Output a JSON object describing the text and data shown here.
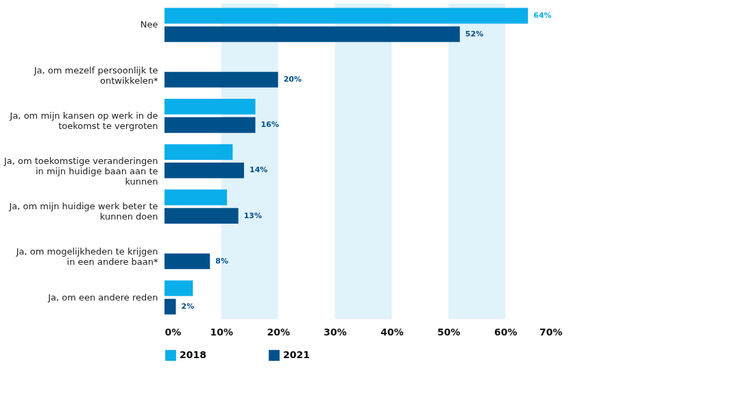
{
  "chart_data": {
    "type": "bar",
    "orientation": "horizontal",
    "categories": [
      "Nee",
      "Ja, om mezelf persoonlijk te ontwikkelen*",
      "Ja, om mijn kansen op werk in de toekomst te vergroten",
      "Ja, om toekomstige veranderingen in mijn huidige baan aan te kunnen",
      "Ja, om mijn huidige werk beter te kunnen doen",
      "Ja, om mogelijkheden te krijgen in een andere baan*",
      "Ja, om een andere reden"
    ],
    "series": [
      {
        "name": "2018",
        "color": "#0aaeea",
        "values": [
          64,
          null,
          16,
          12,
          11,
          null,
          5
        ],
        "value_labels": [
          "64%",
          null,
          null,
          null,
          null,
          null,
          null
        ]
      },
      {
        "name": "2021",
        "color": "#00508a",
        "values": [
          52,
          20,
          16,
          14,
          13,
          8,
          2
        ],
        "value_labels": [
          "52%",
          "20%",
          "16%",
          "14%",
          "13%",
          "8%",
          "2%"
        ]
      }
    ],
    "xlim": [
      0,
      70
    ],
    "xticks": [
      {
        "value": 0,
        "label": "0%"
      },
      {
        "value": 10,
        "label": "10%"
      },
      {
        "value": 20,
        "label": "20%"
      },
      {
        "value": 30,
        "label": "30%"
      },
      {
        "value": 40,
        "label": "40%"
      },
      {
        "value": 50,
        "label": "50%"
      },
      {
        "value": 60,
        "label": "60%"
      },
      {
        "value": 70,
        "label": "70%"
      }
    ],
    "bands": [
      {
        "axis": "x",
        "from": 10,
        "to": 20,
        "color": "#e0f2fa"
      },
      {
        "axis": "x",
        "from": 30,
        "to": 40,
        "color": "#e0f2fa"
      },
      {
        "axis": "x",
        "from": 50,
        "to": 60,
        "color": "#e0f2fa"
      }
    ],
    "grid": false,
    "legend": "bottom"
  }
}
